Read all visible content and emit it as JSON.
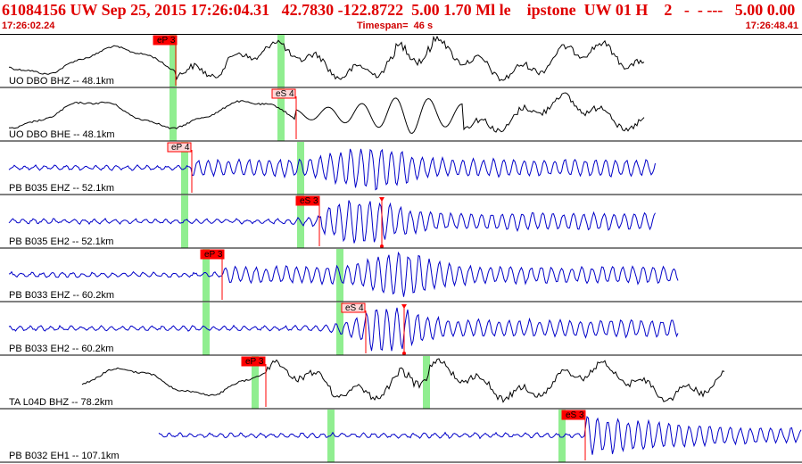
{
  "header": {
    "title": "61084156 UW Sep 25, 2015 17:26:04.31   42.7830 -122.8722  5.00 1.70 Ml le    ipstone  UW 01 H    2   -  - ---   5.00 0.00",
    "start_time": "17:26:02.24",
    "timespan": "Timespan=  46 s",
    "end_time": "17:26:48.41"
  },
  "colors": {
    "title": "#e00000",
    "trace_black": "#000000",
    "trace_blue": "#0000c8",
    "pick_line": "#ff0000",
    "pick_box_solid": "#ff0000",
    "pick_box_light": "#ffd8d8",
    "green_bar": "#90ee90"
  },
  "channels": [
    {
      "label": "UO DBO BHZ -- 48.1km",
      "trace_color": "black",
      "picks": [
        {
          "label": "eP 3",
          "style": "solid"
        }
      ]
    },
    {
      "label": "UO DBO BHE -- 48.1km",
      "trace_color": "black",
      "picks": [
        {
          "label": "eS 4",
          "style": "light"
        }
      ]
    },
    {
      "label": "PB B035 EHZ -- 52.1km",
      "trace_color": "blue",
      "picks": [
        {
          "label": "eP 4",
          "style": "light"
        }
      ]
    },
    {
      "label": "PB B035 EH2 -- 52.1km",
      "trace_color": "blue",
      "picks": [
        {
          "label": "eS 3",
          "style": "solid"
        }
      ]
    },
    {
      "label": "PB B033 EHZ -- 60.2km",
      "trace_color": "blue",
      "picks": [
        {
          "label": "eP 3",
          "style": "solid"
        }
      ]
    },
    {
      "label": "PB B033 EH2 -- 60.2km",
      "trace_color": "blue",
      "picks": [
        {
          "label": "eS 4",
          "style": "light"
        }
      ]
    },
    {
      "label": "TA L04D BHZ -- 78.2km",
      "trace_color": "black",
      "picks": [
        {
          "label": "eP 3",
          "style": "solid"
        }
      ]
    },
    {
      "label": "PB B032 EH1 -- 107.1km",
      "trace_color": "blue",
      "picks": [
        {
          "label": "eS 3",
          "style": "solid"
        }
      ]
    }
  ]
}
